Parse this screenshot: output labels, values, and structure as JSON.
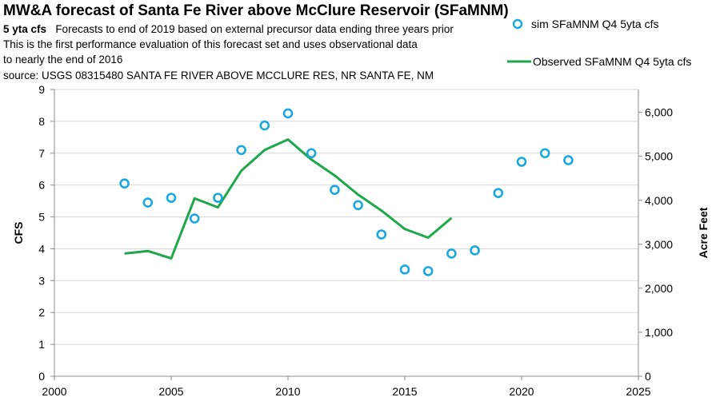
{
  "chart_data": {
    "type": "line",
    "title": "MW&A forecast of Santa Fe River above McClure Reservoir (SFaMNM)",
    "subtitle_bold": "5 yta cfs",
    "subtitle_lines": [
      "Forecasts to end of 2019 based on external precursor data ending three years prior",
      "This is the first performance evaluation of this forecast set and uses observational data",
      "to nearly the end of 2016",
      "source:  USGS 08315480 SANTA FE RIVER ABOVE MCCLURE RES, NR SANTA FE, NM"
    ],
    "ylabel": "CFS",
    "y2label": "Acre Feet",
    "xlim": [
      2000,
      2025
    ],
    "ylim": [
      0,
      9
    ],
    "y2lim": [
      0,
      6520
    ],
    "xticks": [
      2000,
      2005,
      2010,
      2015,
      2020,
      2025
    ],
    "yticks": [
      0,
      1,
      2,
      3,
      4,
      5,
      6,
      7,
      8,
      9
    ],
    "y2ticks": [
      {
        "value": 0,
        "label": "0"
      },
      {
        "value": 1000,
        "label": "1,000"
      },
      {
        "value": 2000,
        "label": "2,000"
      },
      {
        "value": 3000,
        "label": "3,000"
      },
      {
        "value": 4000,
        "label": "4,000"
      },
      {
        "value": 5000,
        "label": "5,000"
      },
      {
        "value": 6000,
        "label": "6,000"
      }
    ],
    "grid": true,
    "legend_position": "top-right",
    "series": [
      {
        "name": "sim SFaMNM Q4 5yta cfs",
        "kind": "scatter",
        "color": "#1aa8e0",
        "x": [
          2003,
          2004,
          2005,
          2006,
          2007,
          2008,
          2009,
          2010,
          2011,
          2012,
          2013,
          2014,
          2015,
          2016,
          2017,
          2018,
          2019,
          2020,
          2021,
          2022
        ],
        "y": [
          6.05,
          5.45,
          5.6,
          4.95,
          5.6,
          7.1,
          7.87,
          8.25,
          7.0,
          5.85,
          5.37,
          4.45,
          3.35,
          3.3,
          3.85,
          3.95,
          5.75,
          6.73,
          7.0,
          6.78
        ]
      },
      {
        "name": "Observed SFaMNM Q4 5yta cfs",
        "kind": "line",
        "color": "#1ea84a",
        "x": [
          2003,
          2004,
          2005,
          2006,
          2007,
          2008,
          2009,
          2010,
          2011,
          2012,
          2013,
          2014,
          2015,
          2016,
          2017
        ],
        "y": [
          3.85,
          3.93,
          3.7,
          5.58,
          5.3,
          6.45,
          7.1,
          7.43,
          6.8,
          6.3,
          5.7,
          5.2,
          4.62,
          4.35,
          4.97
        ]
      }
    ]
  }
}
